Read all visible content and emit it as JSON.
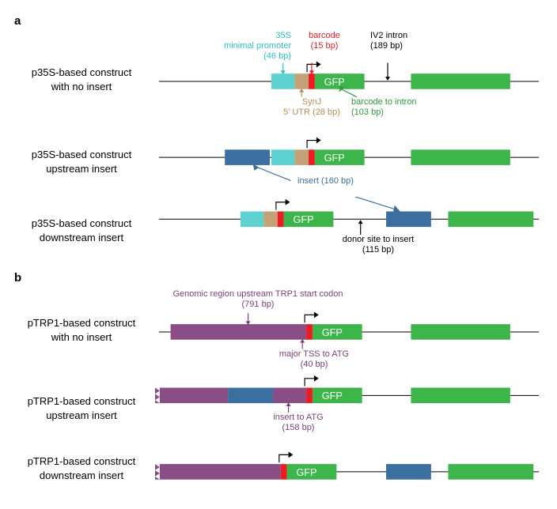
{
  "colors": {
    "line": "#000000",
    "green": "#3eb54a",
    "cyan": "#5ed1d1",
    "tan": "#c4a176",
    "red": "#ed1c24",
    "steel": "#3a6fa0",
    "purple": "#8a4e87",
    "white": "#ffffff"
  },
  "fontsize": {
    "panel": 15,
    "rowlabel": 13,
    "annot": 11
  },
  "panelA": {
    "letter": "a",
    "rows": {
      "r1": {
        "label": "p35S-based construct\nwith no insert",
        "annots": {
          "promoter": {
            "text": "35S\nminimal promoter\n(46 bp)",
            "color": "#2cbfbf"
          },
          "barcode": {
            "text": "barcode\n(15 bp)",
            "color": "#ed1c24"
          },
          "intron": {
            "text": "IV2 intron\n(189 bp)",
            "color": "#000000"
          },
          "synj": {
            "text": "SynJ\n5' UTR (28 bp)",
            "color": "#b88e57"
          },
          "bc2int": {
            "text": "barcode to intron\n(103 bp)",
            "color": "#2d9a37"
          },
          "gfp": "GFP"
        }
      },
      "r2": {
        "label": "p35S-based construct\nupstream insert",
        "annots": {
          "insert": {
            "text": "insert (160 bp)",
            "color": "#3a6fa0"
          },
          "gfp": "GFP"
        }
      },
      "r3": {
        "label": "p35S-based construct\ndownstream insert",
        "annots": {
          "donor": {
            "text": "donor site to insert\n(115 bp)",
            "color": "#000000"
          },
          "gfp": "GFP"
        }
      }
    }
  },
  "panelB": {
    "letter": "b",
    "rows": {
      "r1": {
        "label": "pTRP1-based construct\nwith no insert",
        "annots": {
          "upstream": {
            "text": "Genomic region upstream TRP1 start codon\n(791 bp)",
            "color": "#7c3f79"
          },
          "tss": {
            "text": "major TSS to ATG\n(40 bp)",
            "color": "#7c3f79"
          },
          "gfp": "GFP"
        }
      },
      "r2": {
        "label": "pTRP1-based construct\nupstream insert",
        "annots": {
          "ins2atg": {
            "text": "insert to ATG\n(158 bp)",
            "color": "#7c3f79"
          },
          "gfp": "GFP"
        }
      },
      "r3": {
        "label": "pTRP1-based construct\ndownstream insert",
        "annots": {
          "gfp": "GFP"
        }
      }
    }
  }
}
